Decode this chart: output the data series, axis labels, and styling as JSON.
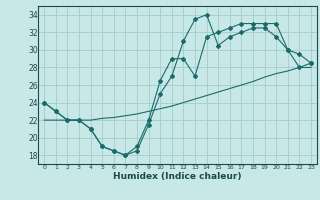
{
  "xlabel": "Humidex (Indice chaleur)",
  "bg_color": "#c8e8e8",
  "grid_color": "#aacfcf",
  "line_color": "#1a6b6b",
  "xlim": [
    -0.5,
    23.5
  ],
  "ylim": [
    17,
    35
  ],
  "xticks": [
    0,
    1,
    2,
    3,
    4,
    5,
    6,
    7,
    8,
    9,
    10,
    11,
    12,
    13,
    14,
    15,
    16,
    17,
    18,
    19,
    20,
    21,
    22,
    23
  ],
  "yticks": [
    18,
    20,
    22,
    24,
    26,
    28,
    30,
    32,
    34
  ],
  "line1_x": [
    0,
    1,
    2,
    3,
    4,
    5,
    6,
    7,
    8,
    9,
    10,
    11,
    12,
    13,
    14,
    15,
    16,
    17,
    18,
    19,
    20,
    21,
    22,
    23
  ],
  "line1_y": [
    24,
    23,
    22,
    22,
    21,
    19,
    18.5,
    18,
    18.5,
    21.5,
    25,
    27,
    31,
    33.5,
    34,
    30.5,
    31.5,
    32,
    32.5,
    32.5,
    31.5,
    30,
    28,
    28.5
  ],
  "line2_x": [
    0,
    1,
    2,
    3,
    4,
    5,
    6,
    7,
    8,
    9,
    10,
    11,
    12,
    13,
    14,
    15,
    16,
    17,
    18,
    19,
    20,
    21,
    22,
    23
  ],
  "line2_y": [
    24,
    23,
    22,
    22,
    21,
    19,
    18.5,
    18,
    19,
    22,
    26.5,
    29,
    29,
    27,
    31.5,
    32,
    32.5,
    33,
    33,
    33,
    33,
    30,
    29.5,
    28.5
  ],
  "line3_x": [
    0,
    1,
    2,
    3,
    4,
    5,
    6,
    7,
    8,
    9,
    10,
    11,
    12,
    13,
    14,
    15,
    16,
    17,
    18,
    19,
    20,
    21,
    22,
    23
  ],
  "line3_y": [
    22,
    22,
    22,
    22,
    22,
    22.2,
    22.3,
    22.5,
    22.7,
    23,
    23.3,
    23.6,
    24,
    24.4,
    24.8,
    25.2,
    25.6,
    26,
    26.4,
    26.9,
    27.3,
    27.6,
    28,
    28
  ]
}
